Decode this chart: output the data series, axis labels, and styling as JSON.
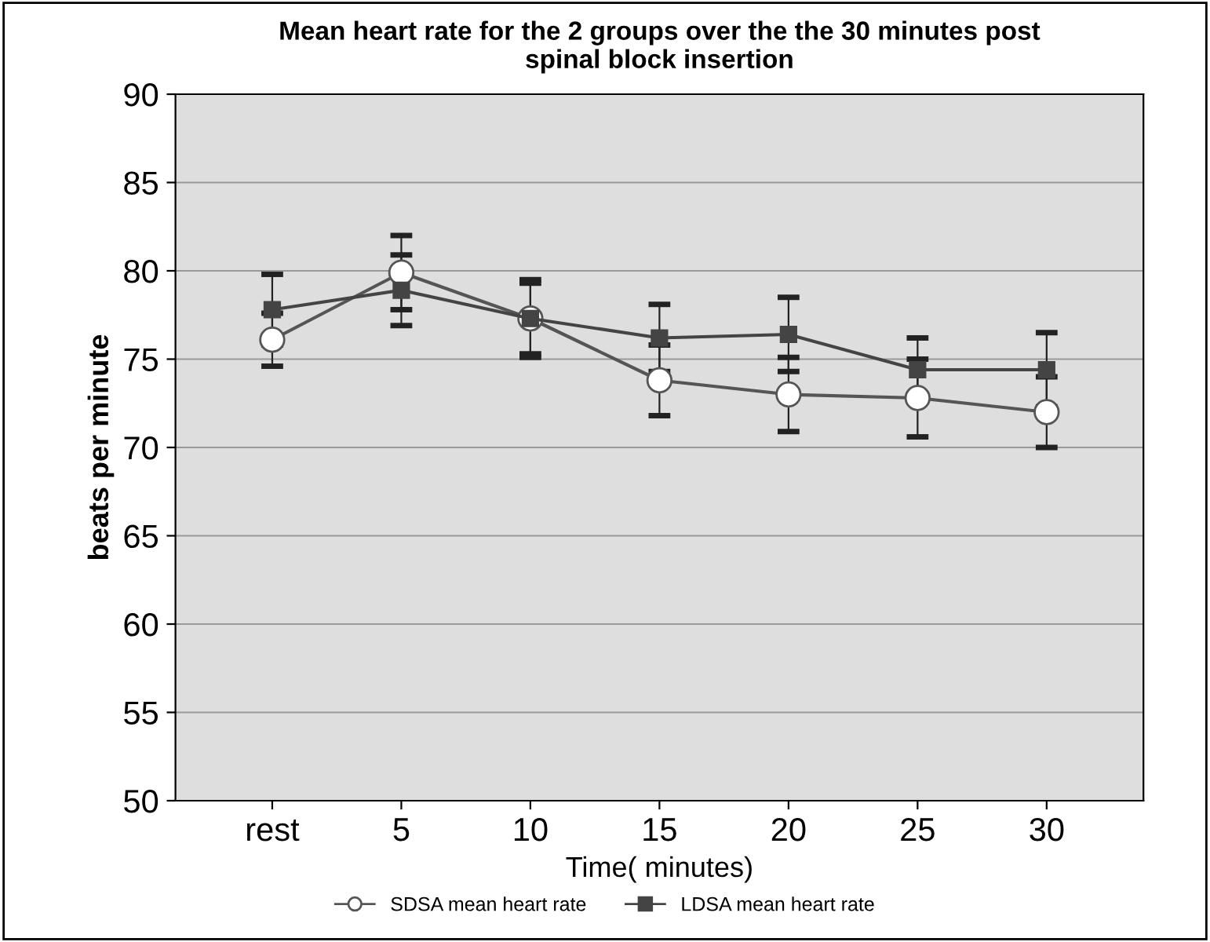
{
  "chart_data": {
    "type": "line",
    "title": "Mean heart rate for the 2 groups over the the 30 minutes post\nspinal block insertion",
    "xlabel": "Time( minutes)",
    "ylabel": "beats per minute",
    "categories": [
      "rest",
      "5",
      "10",
      "15",
      "20",
      "25",
      "30"
    ],
    "series": [
      {
        "name": "SDSA mean heart rate",
        "color": "#555555",
        "marker": "circle",
        "values": [
          76.1,
          79.9,
          77.3,
          73.8,
          73.0,
          72.8,
          72.0
        ],
        "errors": [
          1.5,
          2.1,
          2.2,
          2.0,
          2.1,
          2.2,
          2.0
        ]
      },
      {
        "name": "LDSA mean heart rate",
        "color": "#444444",
        "marker": "square",
        "values": [
          77.8,
          78.9,
          77.3,
          76.2,
          76.4,
          74.4,
          74.4
        ],
        "errors": [
          2.0,
          2.0,
          2.0,
          1.9,
          2.1,
          1.8,
          2.1
        ]
      }
    ],
    "ylim": [
      50,
      90
    ],
    "yticks": [
      50,
      55,
      60,
      65,
      70,
      75,
      80,
      85,
      90
    ],
    "grid": "y",
    "legend": "bottom"
  }
}
